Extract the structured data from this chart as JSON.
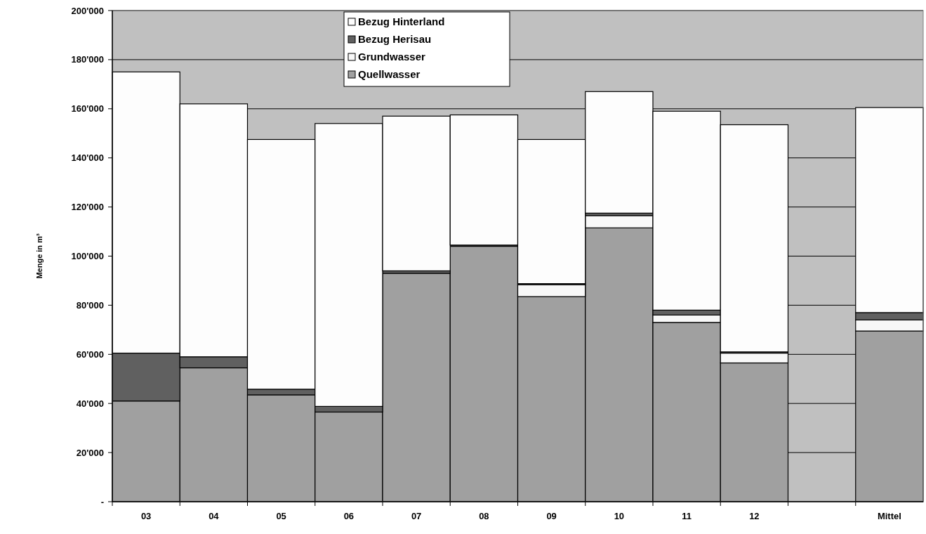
{
  "chart_data": {
    "type": "bar",
    "stacked": true,
    "ylabel": "Menge in m³",
    "categories": [
      "03",
      "04",
      "05",
      "06",
      "07",
      "08",
      "09",
      "10",
      "11",
      "12",
      null,
      "Mittel"
    ],
    "series": [
      {
        "name": "Quellwasser",
        "color": "#a0a0a0",
        "values": [
          41000,
          54500,
          43500,
          36500,
          93000,
          104000,
          83500,
          111500,
          73000,
          56500,
          null,
          69500
        ]
      },
      {
        "name": "Grundwasser",
        "color": "#f8f8f8",
        "values": [
          0,
          0,
          0,
          0,
          0,
          0,
          4800,
          5000,
          3000,
          4000,
          null,
          4500
        ]
      },
      {
        "name": "Bezug Herisau",
        "color": "#606060",
        "values": [
          19500,
          4500,
          2300,
          2300,
          1000,
          500,
          500,
          1000,
          2000,
          500,
          null,
          3000
        ]
      },
      {
        "name": "Bezug Hinterland",
        "color": "#fdfdfd",
        "values": [
          114500,
          103000,
          101700,
          115200,
          63000,
          53000,
          58700,
          49500,
          81000,
          92500,
          null,
          83500
        ]
      }
    ],
    "ylim": [
      0,
      200000
    ],
    "yticks": [
      {
        "value": 0,
        "label": "-"
      },
      {
        "value": 20000,
        "label": "20'000"
      },
      {
        "value": 40000,
        "label": "40'000"
      },
      {
        "value": 60000,
        "label": "60'000"
      },
      {
        "value": 80000,
        "label": "80'000"
      },
      {
        "value": 100000,
        "label": "100'000"
      },
      {
        "value": 120000,
        "label": "120'000"
      },
      {
        "value": 140000,
        "label": "140'000"
      },
      {
        "value": 160000,
        "label": "160'000"
      },
      {
        "value": 180000,
        "label": "180'000"
      },
      {
        "value": 200000,
        "label": "200'000"
      }
    ],
    "grid": "y",
    "legend": "top"
  }
}
